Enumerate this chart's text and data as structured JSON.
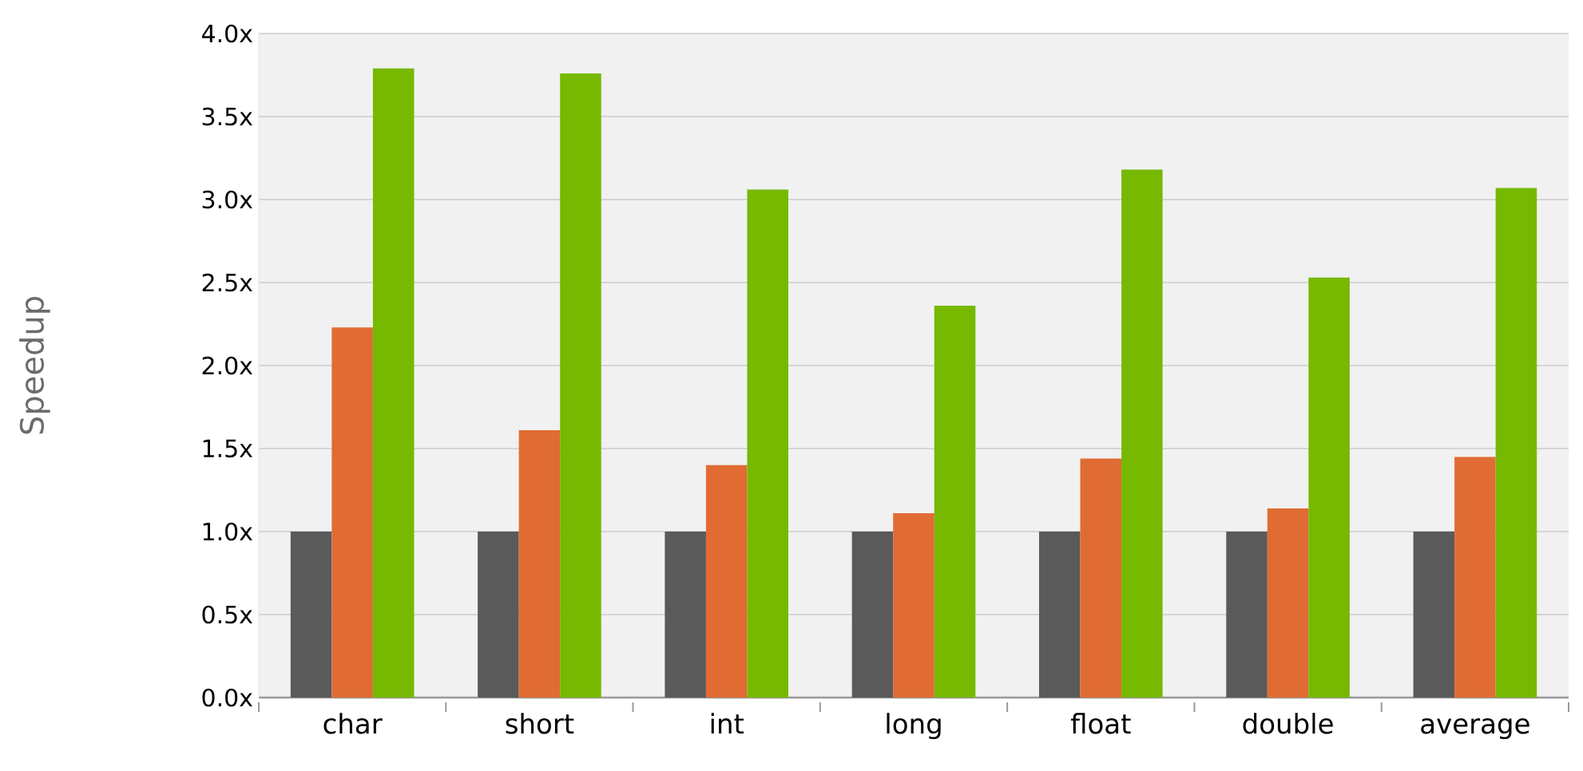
{
  "chart_data": {
    "type": "bar",
    "ylabel": "Speedup",
    "categories": [
      "char",
      "short",
      "int",
      "long",
      "float",
      "double",
      "average"
    ],
    "series": [
      {
        "color": "#5a5a5a",
        "values": [
          1.0,
          1.0,
          1.0,
          1.0,
          1.0,
          1.0,
          1.0
        ]
      },
      {
        "color": "#e06c33",
        "values": [
          2.23,
          1.61,
          1.4,
          1.11,
          1.44,
          1.14,
          1.45
        ]
      },
      {
        "color": "#76b900",
        "values": [
          3.79,
          3.76,
          3.06,
          2.36,
          3.18,
          2.53,
          3.07
        ]
      }
    ],
    "ylim": [
      0,
      4
    ],
    "yticks": [
      {
        "value": 0,
        "label": "0.0x"
      },
      {
        "value": 0.5,
        "label": "0.5x"
      },
      {
        "value": 1,
        "label": "1.0x"
      },
      {
        "value": 1.5,
        "label": "1.5x"
      },
      {
        "value": 2,
        "label": "2.0x"
      },
      {
        "value": 2.5,
        "label": "2.5x"
      },
      {
        "value": 3,
        "label": "3.0x"
      },
      {
        "value": 3.5,
        "label": "3.5x"
      },
      {
        "value": 4,
        "label": "4.0x"
      }
    ],
    "grid": "y"
  }
}
